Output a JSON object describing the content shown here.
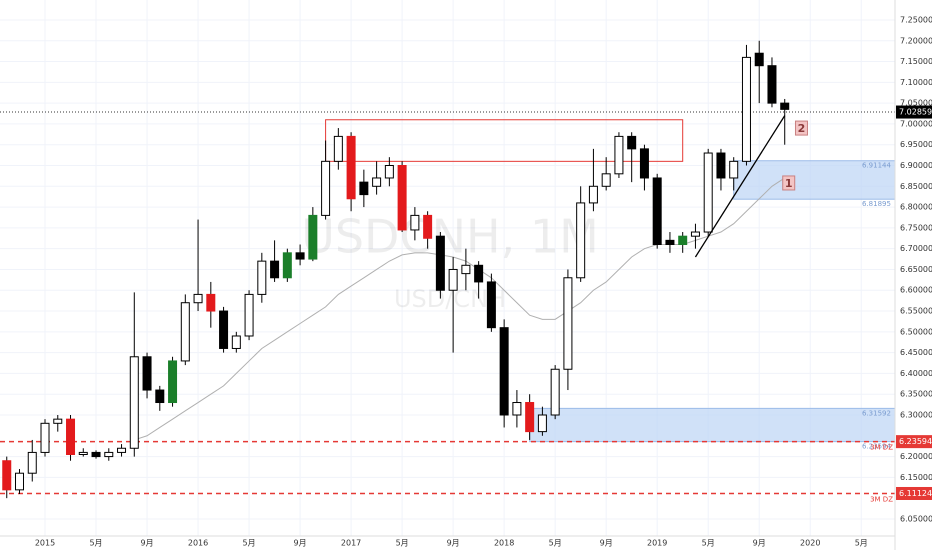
{
  "chart_data": {
    "type": "candlestick",
    "title": "USDCNH, 1M",
    "subtitle": "USD/CNH",
    "x": [
      "2014-10",
      "2014-11",
      "2014-12",
      "2015-01",
      "2015-02",
      "2015-03",
      "2015-04",
      "2015-05",
      "2015-06",
      "2015-07",
      "2015-08",
      "2015-09",
      "2015-10",
      "2015-11",
      "2015-12",
      "2016-01",
      "2016-02",
      "2016-03",
      "2016-04",
      "2016-05",
      "2016-06",
      "2016-07",
      "2016-08",
      "2016-09",
      "2016-10",
      "2016-11",
      "2016-12",
      "2017-01",
      "2017-02",
      "2017-03",
      "2017-04",
      "2017-05",
      "2017-06",
      "2017-07",
      "2017-08",
      "2017-09",
      "2017-10",
      "2017-11",
      "2017-12",
      "2018-01",
      "2018-02",
      "2018-03",
      "2018-04",
      "2018-05",
      "2018-06",
      "2018-07",
      "2018-08",
      "2018-09",
      "2018-10",
      "2018-11",
      "2018-12",
      "2019-01",
      "2019-02",
      "2019-03",
      "2019-04",
      "2019-05",
      "2019-06",
      "2019-07",
      "2019-08",
      "2019-09",
      "2019-10",
      "2019-11"
    ],
    "open": [
      6.19,
      6.12,
      6.16,
      6.21,
      6.28,
      6.29,
      6.205,
      6.21,
      6.2,
      6.21,
      6.22,
      6.44,
      6.36,
      6.33,
      6.43,
      6.57,
      6.59,
      6.55,
      6.46,
      6.49,
      6.59,
      6.67,
      6.63,
      6.69,
      6.675,
      6.78,
      6.91,
      6.97,
      6.86,
      6.85,
      6.87,
      6.9,
      6.745,
      6.78,
      6.73,
      6.6,
      6.64,
      6.66,
      6.62,
      6.51,
      6.3,
      6.33,
      6.26,
      6.3,
      6.41,
      6.63,
      6.81,
      6.85,
      6.88,
      6.97,
      6.94,
      6.87,
      6.72,
      6.71,
      6.73,
      6.74,
      6.93,
      6.87,
      6.91,
      7.17,
      7.14,
      7.05
    ],
    "high": [
      6.2,
      6.17,
      6.24,
      6.29,
      6.3,
      6.3,
      6.22,
      6.215,
      6.22,
      6.23,
      6.595,
      6.45,
      6.37,
      6.44,
      6.59,
      6.77,
      6.62,
      6.56,
      6.5,
      6.6,
      6.69,
      6.72,
      6.7,
      6.71,
      6.8,
      6.96,
      6.99,
      6.98,
      6.89,
      6.91,
      6.92,
      6.91,
      6.8,
      6.79,
      6.74,
      6.68,
      6.7,
      6.67,
      6.64,
      6.53,
      6.36,
      6.35,
      6.32,
      6.42,
      6.65,
      6.85,
      6.94,
      6.92,
      6.98,
      6.98,
      6.95,
      6.88,
      6.74,
      6.74,
      6.76,
      6.94,
      6.94,
      6.92,
      7.19,
      7.2,
      7.16,
      7.06
    ],
    "low": [
      6.1,
      6.11,
      6.14,
      6.2,
      6.26,
      6.19,
      6.2,
      6.195,
      6.19,
      6.2,
      6.2,
      6.34,
      6.31,
      6.32,
      6.42,
      6.55,
      6.51,
      6.45,
      6.45,
      6.48,
      6.57,
      6.62,
      6.62,
      6.66,
      6.67,
      6.77,
      6.89,
      6.79,
      6.8,
      6.83,
      6.85,
      6.74,
      6.72,
      6.7,
      6.58,
      6.45,
      6.6,
      6.58,
      6.5,
      6.27,
      6.27,
      6.24,
      6.25,
      6.29,
      6.36,
      6.62,
      6.79,
      6.84,
      6.87,
      6.86,
      6.84,
      6.7,
      6.69,
      6.69,
      6.7,
      6.73,
      6.84,
      6.84,
      6.9,
      7.05,
      7.04,
      6.95
    ],
    "close": [
      6.12,
      6.16,
      6.21,
      6.28,
      6.29,
      6.205,
      6.21,
      6.2,
      6.21,
      6.22,
      6.44,
      6.36,
      6.33,
      6.43,
      6.57,
      6.59,
      6.55,
      6.46,
      6.49,
      6.59,
      6.67,
      6.63,
      6.69,
      6.675,
      6.78,
      6.91,
      6.97,
      6.82,
      6.83,
      6.87,
      6.9,
      6.745,
      6.78,
      6.725,
      6.6,
      6.65,
      6.66,
      6.62,
      6.51,
      6.3,
      6.33,
      6.26,
      6.3,
      6.41,
      6.63,
      6.81,
      6.85,
      6.88,
      6.97,
      6.94,
      6.87,
      6.71,
      6.71,
      6.73,
      6.74,
      6.93,
      6.87,
      6.91,
      7.16,
      7.14,
      7.05,
      7.035
    ],
    "colors": [
      "#e31a1c",
      "#ffffff",
      "#ffffff",
      "#ffffff",
      "#ffffff",
      "#e31a1c",
      "#ffffff",
      "#000000",
      "#ffffff",
      "#ffffff",
      "#ffffff",
      "#000000",
      "#000000",
      "#1b7f2a",
      "#ffffff",
      "#ffffff",
      "#e31a1c",
      "#000000",
      "#ffffff",
      "#ffffff",
      "#ffffff",
      "#000000",
      "#1b7f2a",
      "#000000",
      "#1b7f2a",
      "#ffffff",
      "#ffffff",
      "#e31a1c",
      "#000000",
      "#ffffff",
      "#ffffff",
      "#e31a1c",
      "#ffffff",
      "#e31a1c",
      "#000000",
      "#ffffff",
      "#ffffff",
      "#000000",
      "#000000",
      "#000000",
      "#ffffff",
      "#e31a1c",
      "#ffffff",
      "#ffffff",
      "#ffffff",
      "#ffffff",
      "#ffffff",
      "#ffffff",
      "#ffffff",
      "#000000",
      "#000000",
      "#000000",
      "#000000",
      "#1b7f2a",
      "#ffffff",
      "#ffffff",
      "#000000",
      "#ffffff",
      "#ffffff",
      "#000000",
      "#000000",
      "#000000"
    ],
    "ma": {
      "color": "#b0b0b0",
      "values": [
        null,
        null,
        null,
        null,
        null,
        null,
        null,
        null,
        null,
        null,
        6.24,
        6.25,
        6.27,
        6.29,
        6.31,
        6.33,
        6.35,
        6.37,
        6.4,
        6.43,
        6.46,
        6.48,
        6.5,
        6.52,
        6.54,
        6.56,
        6.59,
        6.61,
        6.63,
        6.65,
        6.67,
        6.685,
        6.69,
        6.69,
        6.685,
        6.68,
        6.67,
        6.65,
        6.63,
        6.6,
        6.57,
        6.54,
        6.53,
        6.53,
        6.55,
        6.57,
        6.6,
        6.62,
        6.65,
        6.68,
        6.7,
        6.71,
        6.71,
        6.71,
        6.72,
        6.73,
        6.74,
        6.76,
        6.79,
        6.82,
        6.85,
        6.87
      ]
    },
    "xlim": [
      "2014-09",
      "2020-06"
    ],
    "ylim": [
      6.009,
      7.298
    ],
    "xticks": [
      {
        "value": "2015-01",
        "label": "2015"
      },
      {
        "value": "2015-05",
        "label": "5月"
      },
      {
        "value": "2015-09",
        "label": "9月"
      },
      {
        "value": "2016-01",
        "label": "2016"
      },
      {
        "value": "2016-05",
        "label": "5月"
      },
      {
        "value": "2016-09",
        "label": "9月"
      },
      {
        "value": "2017-01",
        "label": "2017"
      },
      {
        "value": "2017-05",
        "label": "5月"
      },
      {
        "value": "2017-09",
        "label": "9月"
      },
      {
        "value": "2018-01",
        "label": "2018"
      },
      {
        "value": "2018-05",
        "label": "5月"
      },
      {
        "value": "2018-09",
        "label": "9月"
      },
      {
        "value": "2019-01",
        "label": "2019"
      },
      {
        "value": "2019-05",
        "label": "5月"
      },
      {
        "value": "2019-09",
        "label": "9月"
      },
      {
        "value": "2020-01",
        "label": "2020"
      },
      {
        "value": "2020-05",
        "label": "5月"
      }
    ],
    "yticks": [
      {
        "value": 7.25,
        "label": "7.25000"
      },
      {
        "value": 7.2,
        "label": "7.20000"
      },
      {
        "value": 7.15,
        "label": "7.15000"
      },
      {
        "value": 7.1,
        "label": "7.10000"
      },
      {
        "value": 7.05,
        "label": "7.05000"
      },
      {
        "value": 7.0,
        "label": "7.00000"
      },
      {
        "value": 6.95,
        "label": "6.95000"
      },
      {
        "value": 6.9,
        "label": "6.90000"
      },
      {
        "value": 6.85,
        "label": "6.85000"
      },
      {
        "value": 6.8,
        "label": "6.80000"
      },
      {
        "value": 6.75,
        "label": "6.75000"
      },
      {
        "value": 6.7,
        "label": "6.70000"
      },
      {
        "value": 6.65,
        "label": "6.65000"
      },
      {
        "value": 6.6,
        "label": "6.60000"
      },
      {
        "value": 6.55,
        "label": "6.55000"
      },
      {
        "value": 6.5,
        "label": "6.50000"
      },
      {
        "value": 6.45,
        "label": "6.45000"
      },
      {
        "value": 6.4,
        "label": "6.40000"
      },
      {
        "value": 6.35,
        "label": "6.35000"
      },
      {
        "value": 6.3,
        "label": "6.30000"
      },
      {
        "value": 6.2,
        "label": "6.20000"
      },
      {
        "value": 6.15,
        "label": "6.15000"
      },
      {
        "value": 6.05,
        "label": "6.05000"
      }
    ],
    "grid": true,
    "last_price": 7.02859,
    "zones": [
      {
        "start": "2019-07",
        "top": 6.91144,
        "bottom": 6.81895,
        "color": "#bcd4f5"
      },
      {
        "start": "2018-03",
        "top": 6.31592,
        "bottom": 6.23594,
        "color": "#bcd4f5"
      }
    ],
    "levels": [
      {
        "value": 6.23594,
        "label": "3M DZ",
        "color": "#e53935"
      },
      {
        "value": 6.11124,
        "label": "3M DZ",
        "color": "#e53935"
      }
    ],
    "box": {
      "start": "2016-11",
      "end": "2019-03",
      "top": 7.01,
      "bottom": 6.91,
      "color": "#e53935"
    },
    "trendline": {
      "x": [
        "2019-04",
        "2019-11"
      ],
      "y": [
        6.68,
        7.02
      ]
    },
    "markers": [
      {
        "label": "1",
        "x": "2019-11",
        "y": 6.858
      },
      {
        "label": "2",
        "x": "2019-12",
        "y": 6.99
      }
    ]
  }
}
